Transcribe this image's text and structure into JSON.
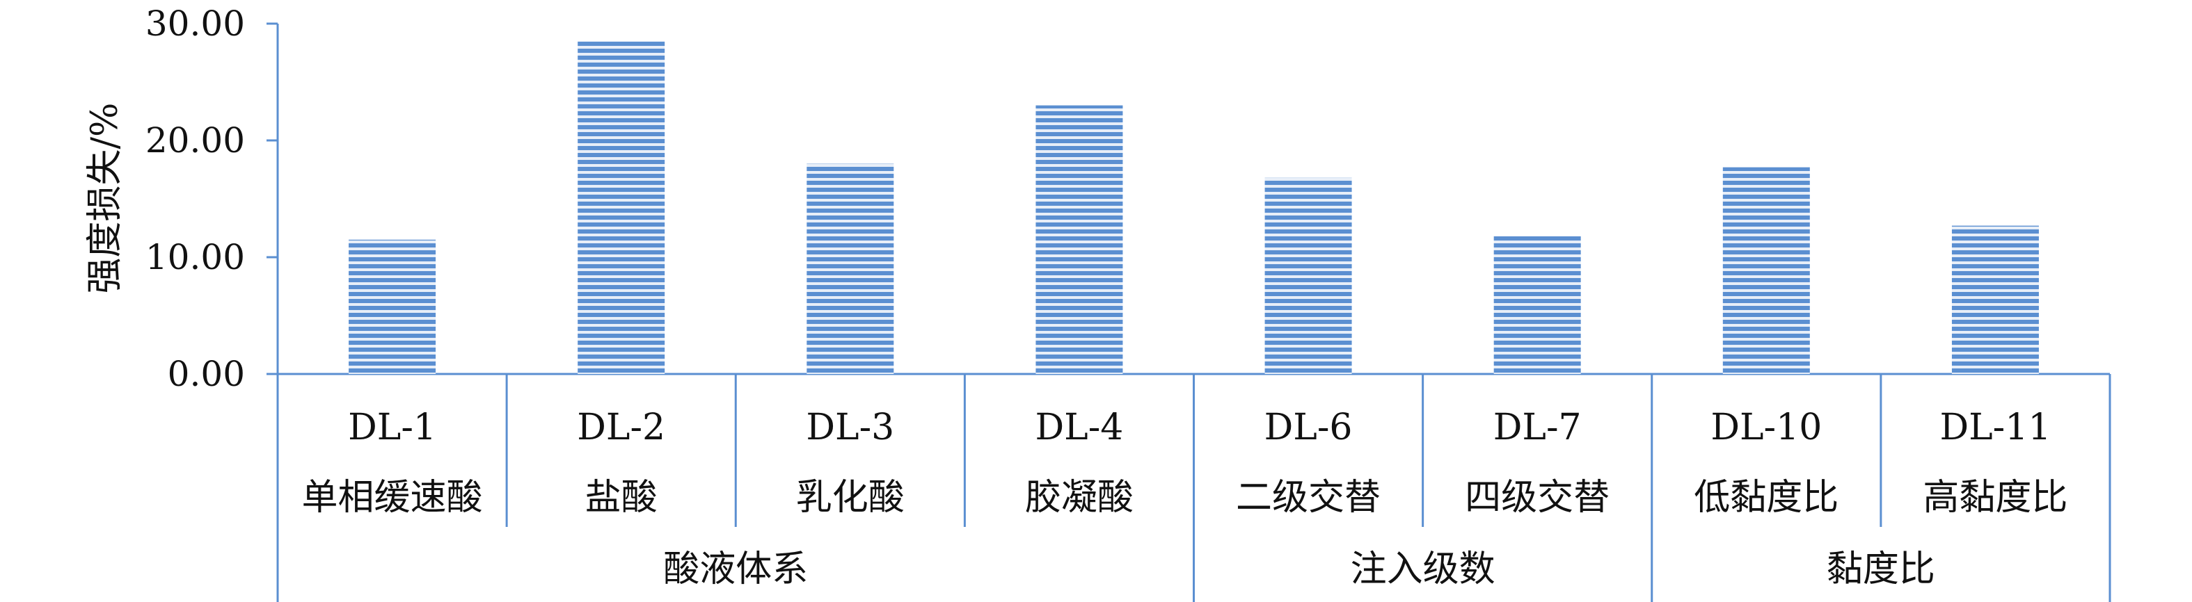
{
  "chart_data": {
    "type": "bar",
    "ylabel": "强度损失/%",
    "ylim": [
      0,
      30
    ],
    "yticks": [
      "0.00",
      "10.00",
      "20.00",
      "30.00"
    ],
    "categories": [
      {
        "code": "DL-1",
        "name": "单相缓速酸"
      },
      {
        "code": "DL-2",
        "name": "盐酸"
      },
      {
        "code": "DL-3",
        "name": "乳化酸"
      },
      {
        "code": "DL-4",
        "name": "胶凝酸"
      },
      {
        "code": "DL-6",
        "name": "二级交替"
      },
      {
        "code": "DL-7",
        "name": "四级交替"
      },
      {
        "code": "DL-10",
        "name": "低黏度比"
      },
      {
        "code": "DL-11",
        "name": "高黏度比"
      }
    ],
    "values": [
      11.5,
      28.5,
      18.0,
      23.0,
      16.8,
      11.8,
      17.7,
      12.7
    ],
    "groups": [
      {
        "label": "酸液体系",
        "span": 4
      },
      {
        "label": "注入级数",
        "span": 2
      },
      {
        "label": "黏度比",
        "span": 2
      }
    ],
    "bar_color": "#5b8fd1",
    "bar_stripe_color": "#ffffff",
    "axis_color": "#5b8fd1",
    "grid": false
  }
}
